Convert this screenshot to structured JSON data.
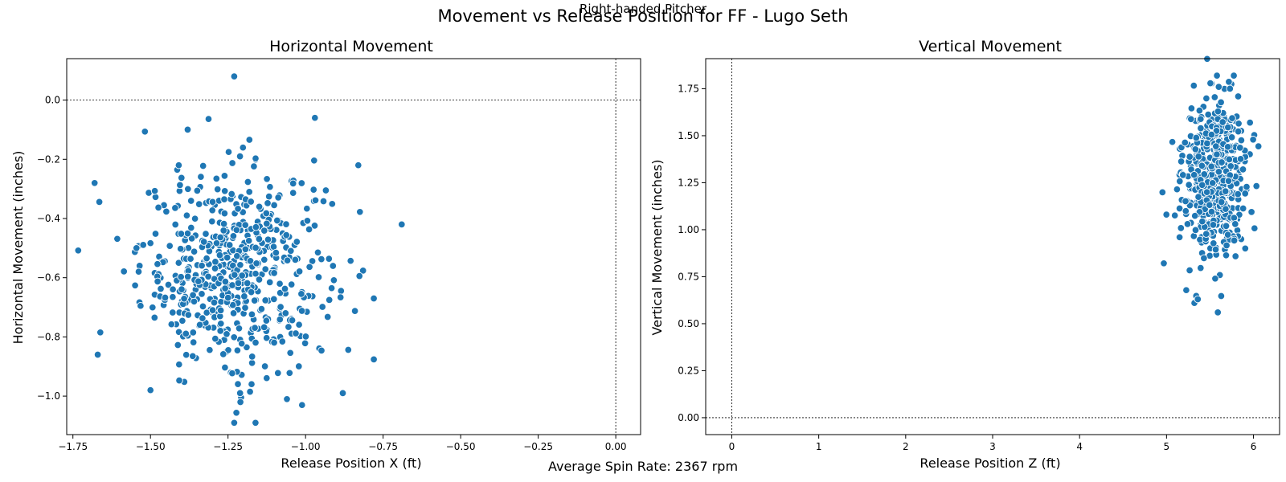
{
  "figure": {
    "title": "Movement vs Release Position for FF - Lugo Seth",
    "subtitle": "Right-handed Pitcher",
    "footer": "Average Spin Rate: 2367 rpm",
    "marker_color": "#1f77b4"
  },
  "chart_data": [
    {
      "type": "scatter",
      "title": "Horizontal Movement",
      "xlabel": "Release Position X (ft)",
      "ylabel": "Horizontal Movement (inches)",
      "xlim": [
        -1.77,
        0.08
      ],
      "ylim": [
        -1.13,
        0.14
      ],
      "xticks": [
        -1.75,
        -1.5,
        -1.25,
        -1.0,
        -0.75,
        -0.5,
        -0.25,
        0.0
      ],
      "xtick_labels": [
        "−1.75",
        "−1.50",
        "−1.25",
        "−1.00",
        "−0.75",
        "−0.50",
        "−0.25",
        "0.00"
      ],
      "yticks": [
        -1.0,
        -0.8,
        -0.6,
        -0.4,
        -0.2,
        0.0
      ],
      "ytick_labels": [
        "−1.0",
        "−0.8",
        "−0.6",
        "−0.4",
        "−0.2",
        "0.0"
      ],
      "reference_lines": {
        "x": 0,
        "y": 0
      },
      "grid": false,
      "outliers": [
        {
          "x": -1.23,
          "y": 0.08
        },
        {
          "x": -1.23,
          "y": -1.09
        },
        {
          "x": -0.69,
          "y": -0.42
        },
        {
          "x": -1.67,
          "y": -0.86
        },
        {
          "x": -1.68,
          "y": -0.28
        },
        {
          "x": -0.97,
          "y": -0.06
        },
        {
          "x": -0.83,
          "y": -0.22
        },
        {
          "x": -0.78,
          "y": -0.67
        },
        {
          "x": -1.38,
          "y": -0.1
        },
        {
          "x": -0.88,
          "y": -0.99
        },
        {
          "x": -1.21,
          "y": -1.02
        },
        {
          "x": -1.06,
          "y": -1.01
        },
        {
          "x": -1.5,
          "y": -0.98
        }
      ],
      "cluster": {
        "center_x": -1.23,
        "center_y": -0.57,
        "sd_x": 0.15,
        "sd_y": 0.17,
        "n": 560
      }
    },
    {
      "type": "scatter",
      "title": "Vertical Movement",
      "xlabel": "Release Position Z (ft)",
      "ylabel": "Vertical Movement (inches)",
      "xlim": [
        -0.3,
        6.3
      ],
      "ylim": [
        -0.09,
        1.91
      ],
      "xticks": [
        0,
        1,
        2,
        3,
        4,
        5,
        6
      ],
      "xtick_labels": [
        "0",
        "1",
        "2",
        "3",
        "4",
        "5",
        "6"
      ],
      "yticks": [
        0.0,
        0.25,
        0.5,
        0.75,
        1.0,
        1.25,
        1.5,
        1.75
      ],
      "ytick_labels": [
        "0.00",
        "0.25",
        "0.50",
        "0.75",
        "1.00",
        "1.25",
        "1.50",
        "1.75"
      ],
      "reference_lines": {
        "x": 0,
        "y": 0
      },
      "grid": false,
      "outliers": [
        {
          "x": 5.58,
          "y": 1.82
        },
        {
          "x": 5.59,
          "y": 0.56
        },
        {
          "x": 5.32,
          "y": 0.61
        },
        {
          "x": 5.36,
          "y": 0.63
        },
        {
          "x": 5.56,
          "y": 0.74
        },
        {
          "x": 5.6,
          "y": 1.76
        },
        {
          "x": 5.73,
          "y": 1.75
        },
        {
          "x": 5.96,
          "y": 1.57
        },
        {
          "x": 5.15,
          "y": 0.96
        },
        {
          "x": 5.79,
          "y": 1.03
        }
      ],
      "cluster": {
        "center_x": 5.55,
        "center_y": 1.28,
        "sd_x": 0.18,
        "sd_y": 0.2,
        "n": 560
      }
    }
  ]
}
